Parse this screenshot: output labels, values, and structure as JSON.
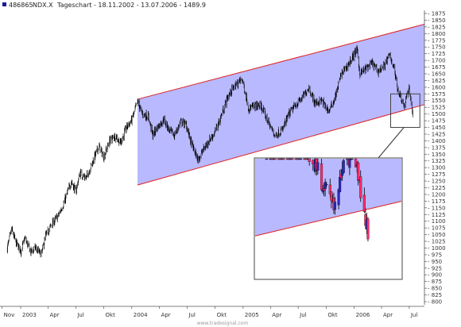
{
  "header": {
    "id": "486865",
    "symbol": "NDX.X",
    "text": "Tageschart - 18.11.2002 - 13.07.2006 - 1489.9"
  },
  "watermark": "www.tradesignal.com",
  "colors": {
    "channel_fill": "#b9b9ff",
    "channel_line": "#e02020",
    "candle": "#000000",
    "inset_candle_up": "#2b2bb8",
    "inset_candle_down": "#ff2a6a",
    "box": "#444444",
    "header_icon": "#1a1a9a"
  },
  "chart_data": {
    "type": "candlestick",
    "title": "486865 NDX.X, Tageschart - 18.11.2002 - 13.07.2006 - 1489.9",
    "xlabel": "",
    "ylabel": "",
    "ylim": [
      800,
      1875
    ],
    "y_ticks": [
      1875,
      1850,
      1825,
      1800,
      1775,
      1750,
      1725,
      1700,
      1675,
      1650,
      1625,
      1600,
      1575,
      1550,
      1525,
      1500,
      1475,
      1450,
      1425,
      1400,
      1375,
      1350,
      1325,
      1300,
      1275,
      1250,
      1225,
      1200,
      1175,
      1150,
      1125,
      1100,
      1075,
      1050,
      1025,
      1000,
      975,
      950,
      925,
      900,
      875,
      850,
      825,
      800
    ],
    "x_ticks": [
      {
        "label": "Nov",
        "date": "2002-11-01"
      },
      {
        "label": "2003",
        "date": "2003-01-01"
      },
      {
        "label": "Apr",
        "date": "2003-04-01"
      },
      {
        "label": "Jul",
        "date": "2003-07-01"
      },
      {
        "label": "Okt",
        "date": "2003-10-01"
      },
      {
        "label": "2004",
        "date": "2004-01-01"
      },
      {
        "label": "Apr",
        "date": "2004-04-01"
      },
      {
        "label": "Jul",
        "date": "2004-07-01"
      },
      {
        "label": "Okt",
        "date": "2004-10-01"
      },
      {
        "label": "2005",
        "date": "2005-01-01"
      },
      {
        "label": "Apr",
        "date": "2005-04-01"
      },
      {
        "label": "Jul",
        "date": "2005-07-01"
      },
      {
        "label": "Okt",
        "date": "2005-10-01"
      },
      {
        "label": "2006",
        "date": "2006-01-01"
      },
      {
        "label": "Apr",
        "date": "2006-04-01"
      },
      {
        "label": "Jul",
        "date": "2006-07-01"
      }
    ],
    "x_range": [
      "2002-10-25",
      "2006-08-20"
    ],
    "last_value": 1489.9,
    "series": [
      {
        "name": "NDX.X",
        "points": [
          [
            "2002-11-18",
            1000
          ],
          [
            "2002-12-02",
            1070
          ],
          [
            "2002-12-16",
            1020
          ],
          [
            "2003-01-02",
            990
          ],
          [
            "2003-01-15",
            1035
          ],
          [
            "2003-02-03",
            985
          ],
          [
            "2003-02-18",
            1000
          ],
          [
            "2003-03-10",
            975
          ],
          [
            "2003-03-24",
            1045
          ],
          [
            "2003-04-14",
            1090
          ],
          [
            "2003-05-05",
            1120
          ],
          [
            "2003-05-27",
            1180
          ],
          [
            "2003-06-16",
            1250
          ],
          [
            "2003-07-01",
            1210
          ],
          [
            "2003-07-15",
            1280
          ],
          [
            "2003-08-04",
            1260
          ],
          [
            "2003-08-25",
            1320
          ],
          [
            "2003-09-15",
            1380
          ],
          [
            "2003-10-01",
            1340
          ],
          [
            "2003-10-20",
            1400
          ],
          [
            "2003-11-10",
            1420
          ],
          [
            "2003-11-24",
            1390
          ],
          [
            "2003-12-15",
            1450
          ],
          [
            "2004-01-02",
            1480
          ],
          [
            "2004-01-20",
            1545
          ],
          [
            "2004-02-05",
            1500
          ],
          [
            "2004-02-25",
            1490
          ],
          [
            "2004-03-10",
            1420
          ],
          [
            "2004-03-25",
            1450
          ],
          [
            "2004-04-15",
            1480
          ],
          [
            "2004-05-03",
            1440
          ],
          [
            "2004-05-20",
            1420
          ],
          [
            "2004-06-10",
            1470
          ],
          [
            "2004-06-28",
            1460
          ],
          [
            "2004-07-15",
            1390
          ],
          [
            "2004-08-05",
            1330
          ],
          [
            "2004-08-20",
            1360
          ],
          [
            "2004-09-10",
            1400
          ],
          [
            "2004-09-30",
            1430
          ],
          [
            "2004-10-20",
            1490
          ],
          [
            "2004-11-10",
            1560
          ],
          [
            "2004-12-01",
            1600
          ],
          [
            "2004-12-29",
            1630
          ],
          [
            "2005-01-20",
            1520
          ],
          [
            "2005-02-10",
            1530
          ],
          [
            "2005-03-01",
            1530
          ],
          [
            "2005-03-20",
            1480
          ],
          [
            "2005-04-15",
            1420
          ],
          [
            "2005-05-10",
            1440
          ],
          [
            "2005-06-01",
            1500
          ],
          [
            "2005-06-20",
            1530
          ],
          [
            "2005-07-15",
            1560
          ],
          [
            "2005-08-05",
            1600
          ],
          [
            "2005-08-25",
            1540
          ],
          [
            "2005-09-15",
            1550
          ],
          [
            "2005-10-10",
            1510
          ],
          [
            "2005-10-30",
            1560
          ],
          [
            "2005-11-20",
            1650
          ],
          [
            "2005-12-10",
            1680
          ],
          [
            "2006-01-10",
            1740
          ],
          [
            "2006-01-20",
            1650
          ],
          [
            "2006-02-10",
            1670
          ],
          [
            "2006-03-01",
            1690
          ],
          [
            "2006-03-20",
            1660
          ],
          [
            "2006-04-10",
            1680
          ],
          [
            "2006-04-28",
            1720
          ],
          [
            "2006-05-10",
            1680
          ],
          [
            "2006-05-25",
            1590
          ],
          [
            "2006-06-15",
            1530
          ],
          [
            "2006-07-01",
            1600
          ],
          [
            "2006-07-13",
            1490
          ]
        ]
      }
    ],
    "channel": {
      "lower": [
        [
          "2004-01-20",
          1235
        ],
        [
          "2006-08-20",
          1535
        ]
      ],
      "upper": [
        [
          "2004-01-20",
          1555
        ],
        [
          "2006-08-20",
          1835
        ]
      ]
    },
    "zoom_box": {
      "from": "2006-05-01",
      "to": "2006-08-05",
      "low": 1450,
      "high": 1575
    }
  }
}
